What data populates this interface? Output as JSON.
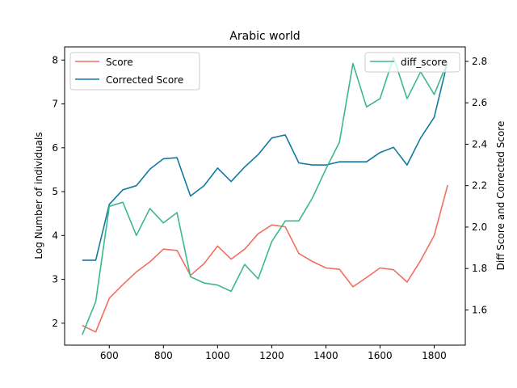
{
  "chart_data": {
    "type": "line",
    "title": "Arabic world",
    "xlabel": "",
    "ylabel": "Log Number of individuals",
    "y2label": "Diff Score and Corrected Score",
    "x": [
      500,
      550,
      600,
      650,
      700,
      750,
      800,
      850,
      900,
      950,
      1000,
      1050,
      1100,
      1150,
      1200,
      1250,
      1300,
      1350,
      1400,
      1450,
      1500,
      1550,
      1600,
      1650,
      1700,
      1750,
      1800,
      1850
    ],
    "xlim": [
      435,
      1915
    ],
    "ylim": [
      1.5,
      8.3
    ],
    "y2lim": [
      1.43,
      2.87
    ],
    "xticks": [
      "600",
      "800",
      "1000",
      "1200",
      "1400",
      "1600",
      "1800"
    ],
    "yticks": [
      "2",
      "3",
      "4",
      "5",
      "6",
      "7",
      "8"
    ],
    "y2ticks": [
      "1.6",
      "1.8",
      "2.0",
      "2.2",
      "2.4",
      "2.6",
      "2.8"
    ],
    "grid": false,
    "series": [
      {
        "name": "Score",
        "axis": "left",
        "color": "#f07060",
        "values": [
          1.95,
          1.8,
          2.57,
          2.88,
          3.17,
          3.4,
          3.69,
          3.66,
          3.09,
          3.36,
          3.76,
          3.46,
          3.69,
          4.04,
          4.24,
          4.2,
          3.59,
          3.41,
          3.26,
          3.23,
          2.83,
          3.04,
          3.26,
          3.22,
          2.94,
          3.43,
          4.0,
          5.15
        ]
      },
      {
        "name": "Corrected Score",
        "axis": "right",
        "color": "#1478a0",
        "values": [
          1.84,
          1.84,
          2.11,
          2.18,
          2.2,
          2.28,
          2.33,
          2.335,
          2.15,
          2.2,
          2.285,
          2.22,
          2.29,
          2.35,
          2.43,
          2.445,
          2.31,
          2.3,
          2.3,
          2.315,
          2.315,
          2.315,
          2.36,
          2.385,
          2.3,
          2.43,
          2.53,
          2.8
        ]
      },
      {
        "name": "diff_score",
        "axis": "right",
        "color": "#3cb88c",
        "values": [
          1.48,
          1.64,
          2.1,
          2.12,
          1.96,
          2.09,
          2.02,
          2.07,
          1.76,
          1.73,
          1.72,
          1.69,
          1.82,
          1.75,
          1.93,
          2.03,
          2.03,
          2.14,
          2.28,
          2.41,
          2.79,
          2.58,
          2.62,
          2.82,
          2.62,
          2.75,
          2.64,
          2.8
        ]
      }
    ],
    "legend_left": {
      "placement": "top-left",
      "entries": [
        "Score",
        "Corrected Score"
      ]
    },
    "legend_right": {
      "placement": "top-right",
      "entries": [
        "diff_score"
      ]
    }
  }
}
